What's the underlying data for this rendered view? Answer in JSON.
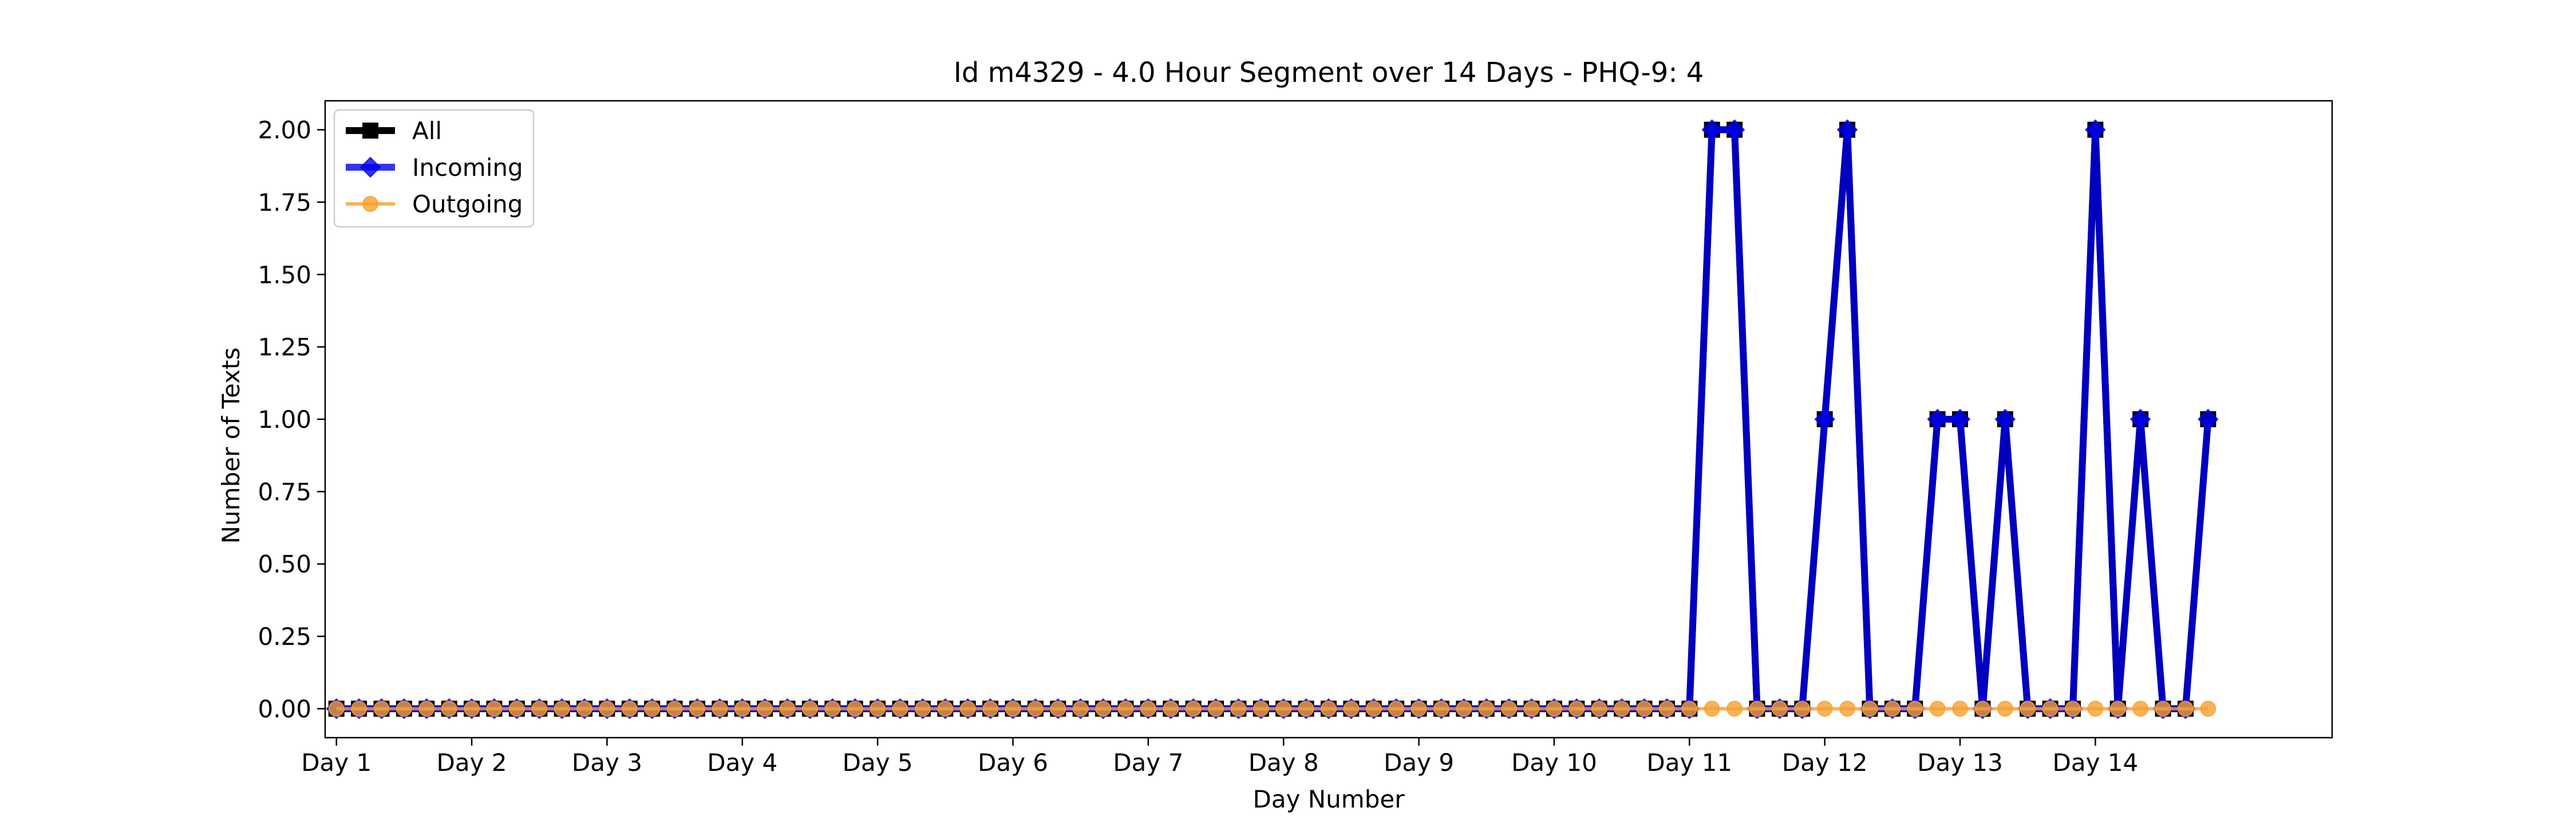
{
  "chart_data": {
    "type": "line",
    "title": "Id m4329 - 4.0 Hour Segment over 14 Days - PHQ-9: 4",
    "xlabel": "Day Number",
    "ylabel": "Number of Texts",
    "xlim": [
      -0.5,
      88.5
    ],
    "ylim": [
      -0.1,
      2.1
    ],
    "x_tick_positions": [
      0,
      6,
      12,
      18,
      24,
      30,
      36,
      42,
      48,
      54,
      60,
      66,
      72,
      78
    ],
    "x_tick_labels": [
      "Day 1",
      "Day 2",
      "Day 3",
      "Day 4",
      "Day 5",
      "Day 6",
      "Day 7",
      "Day 8",
      "Day 9",
      "Day 10",
      "Day 11",
      "Day 12",
      "Day 13",
      "Day 14"
    ],
    "y_ticks": [
      0.0,
      0.25,
      0.5,
      0.75,
      1.0,
      1.25,
      1.5,
      1.75,
      2.0
    ],
    "y_tick_labels": [
      "0.00",
      "0.25",
      "0.50",
      "0.75",
      "1.00",
      "1.25",
      "1.50",
      "1.75",
      "2.00"
    ],
    "grid": false,
    "legend_position": "top-left",
    "series": [
      {
        "name": "All",
        "color": "#000000",
        "marker": "square",
        "values": [
          0,
          0,
          0,
          0,
          0,
          0,
          0,
          0,
          0,
          0,
          0,
          0,
          0,
          0,
          0,
          0,
          0,
          0,
          0,
          0,
          0,
          0,
          0,
          0,
          0,
          0,
          0,
          0,
          0,
          0,
          0,
          0,
          0,
          0,
          0,
          0,
          0,
          0,
          0,
          0,
          0,
          0,
          0,
          0,
          0,
          0,
          0,
          0,
          0,
          0,
          0,
          0,
          0,
          0,
          0,
          0,
          0,
          0,
          0,
          0,
          0,
          2,
          2,
          0,
          0,
          0,
          1,
          2,
          0,
          0,
          0,
          1,
          1,
          0,
          1,
          0,
          0,
          0,
          2,
          0,
          1,
          0,
          0,
          1
        ]
      },
      {
        "name": "Incoming",
        "color": "#0000ee",
        "marker": "diamond",
        "values": [
          0,
          0,
          0,
          0,
          0,
          0,
          0,
          0,
          0,
          0,
          0,
          0,
          0,
          0,
          0,
          0,
          0,
          0,
          0,
          0,
          0,
          0,
          0,
          0,
          0,
          0,
          0,
          0,
          0,
          0,
          0,
          0,
          0,
          0,
          0,
          0,
          0,
          0,
          0,
          0,
          0,
          0,
          0,
          0,
          0,
          0,
          0,
          0,
          0,
          0,
          0,
          0,
          0,
          0,
          0,
          0,
          0,
          0,
          0,
          0,
          0,
          2,
          2,
          0,
          0,
          0,
          1,
          2,
          0,
          0,
          0,
          1,
          1,
          0,
          1,
          0,
          0,
          0,
          2,
          0,
          1,
          0,
          0,
          1
        ]
      },
      {
        "name": "Outgoing",
        "color": "#f5a030",
        "marker": "circle",
        "values": [
          0,
          0,
          0,
          0,
          0,
          0,
          0,
          0,
          0,
          0,
          0,
          0,
          0,
          0,
          0,
          0,
          0,
          0,
          0,
          0,
          0,
          0,
          0,
          0,
          0,
          0,
          0,
          0,
          0,
          0,
          0,
          0,
          0,
          0,
          0,
          0,
          0,
          0,
          0,
          0,
          0,
          0,
          0,
          0,
          0,
          0,
          0,
          0,
          0,
          0,
          0,
          0,
          0,
          0,
          0,
          0,
          0,
          0,
          0,
          0,
          0,
          0,
          0,
          0,
          0,
          0,
          0,
          0,
          0,
          0,
          0,
          0,
          0,
          0,
          0,
          0,
          0,
          0,
          0,
          0,
          0,
          0,
          0,
          0
        ]
      }
    ]
  }
}
